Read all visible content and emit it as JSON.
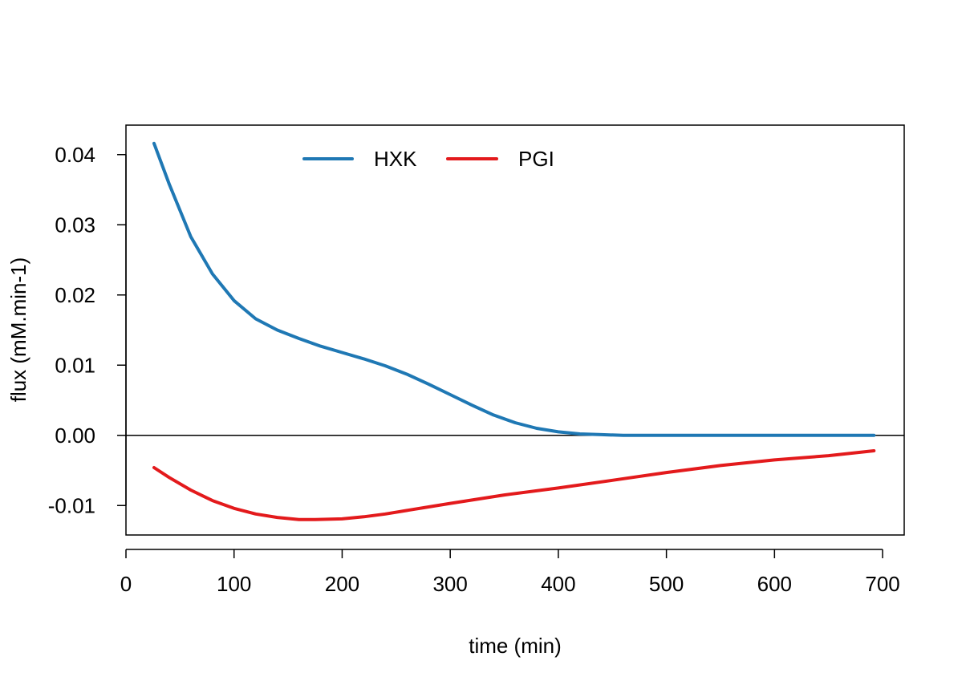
{
  "chart_data": {
    "type": "line",
    "title": "",
    "xlabel": "time (min)",
    "ylabel": "flux (mM.min-1)",
    "xlim": [
      0,
      720
    ],
    "ylim": [
      -0.0142,
      0.0442
    ],
    "x_ticks": [
      0,
      100,
      200,
      300,
      400,
      500,
      600,
      700
    ],
    "x_tick_labels": [
      "0",
      "100",
      "200",
      "300",
      "400",
      "500",
      "600",
      "700"
    ],
    "y_ticks": [
      -0.01,
      0.0,
      0.01,
      0.02,
      0.03,
      0.04
    ],
    "y_tick_labels": [
      "-0.01",
      "0.00",
      "0.01",
      "0.02",
      "0.03",
      "0.04"
    ],
    "grid": false,
    "reference_line": {
      "y": 0,
      "color": "#000000"
    },
    "legend": {
      "placement": "top",
      "orientation": "horizontal",
      "frame": false
    },
    "series": [
      {
        "name": "HXK",
        "color": "#1F78B4",
        "x": [
          26,
          40,
          60,
          80,
          100,
          120,
          140,
          160,
          180,
          200,
          220,
          240,
          260,
          280,
          300,
          320,
          340,
          360,
          380,
          400,
          420,
          440,
          460,
          500,
          550,
          600,
          650,
          692
        ],
        "y": [
          0.0416,
          0.0358,
          0.0283,
          0.023,
          0.0192,
          0.0166,
          0.015,
          0.0138,
          0.0127,
          0.0118,
          0.0109,
          0.0099,
          0.0087,
          0.0073,
          0.0058,
          0.0043,
          0.0029,
          0.0018,
          0.001,
          0.0005,
          0.0002,
          0.0001,
          0.0,
          0.0,
          0.0,
          0.0,
          0.0,
          0.0
        ]
      },
      {
        "name": "PGI",
        "color": "#E31A1C",
        "x": [
          26,
          40,
          60,
          80,
          100,
          120,
          140,
          160,
          175,
          200,
          220,
          240,
          260,
          280,
          300,
          350,
          400,
          450,
          500,
          550,
          600,
          650,
          692
        ],
        "y": [
          -0.0046,
          -0.006,
          -0.0078,
          -0.0093,
          -0.0104,
          -0.0112,
          -0.0117,
          -0.012,
          -0.012,
          -0.0119,
          -0.0116,
          -0.0112,
          -0.0107,
          -0.0102,
          -0.0097,
          -0.0085,
          -0.0075,
          -0.0064,
          -0.0053,
          -0.0043,
          -0.0035,
          -0.0029,
          -0.0022
        ]
      }
    ]
  }
}
